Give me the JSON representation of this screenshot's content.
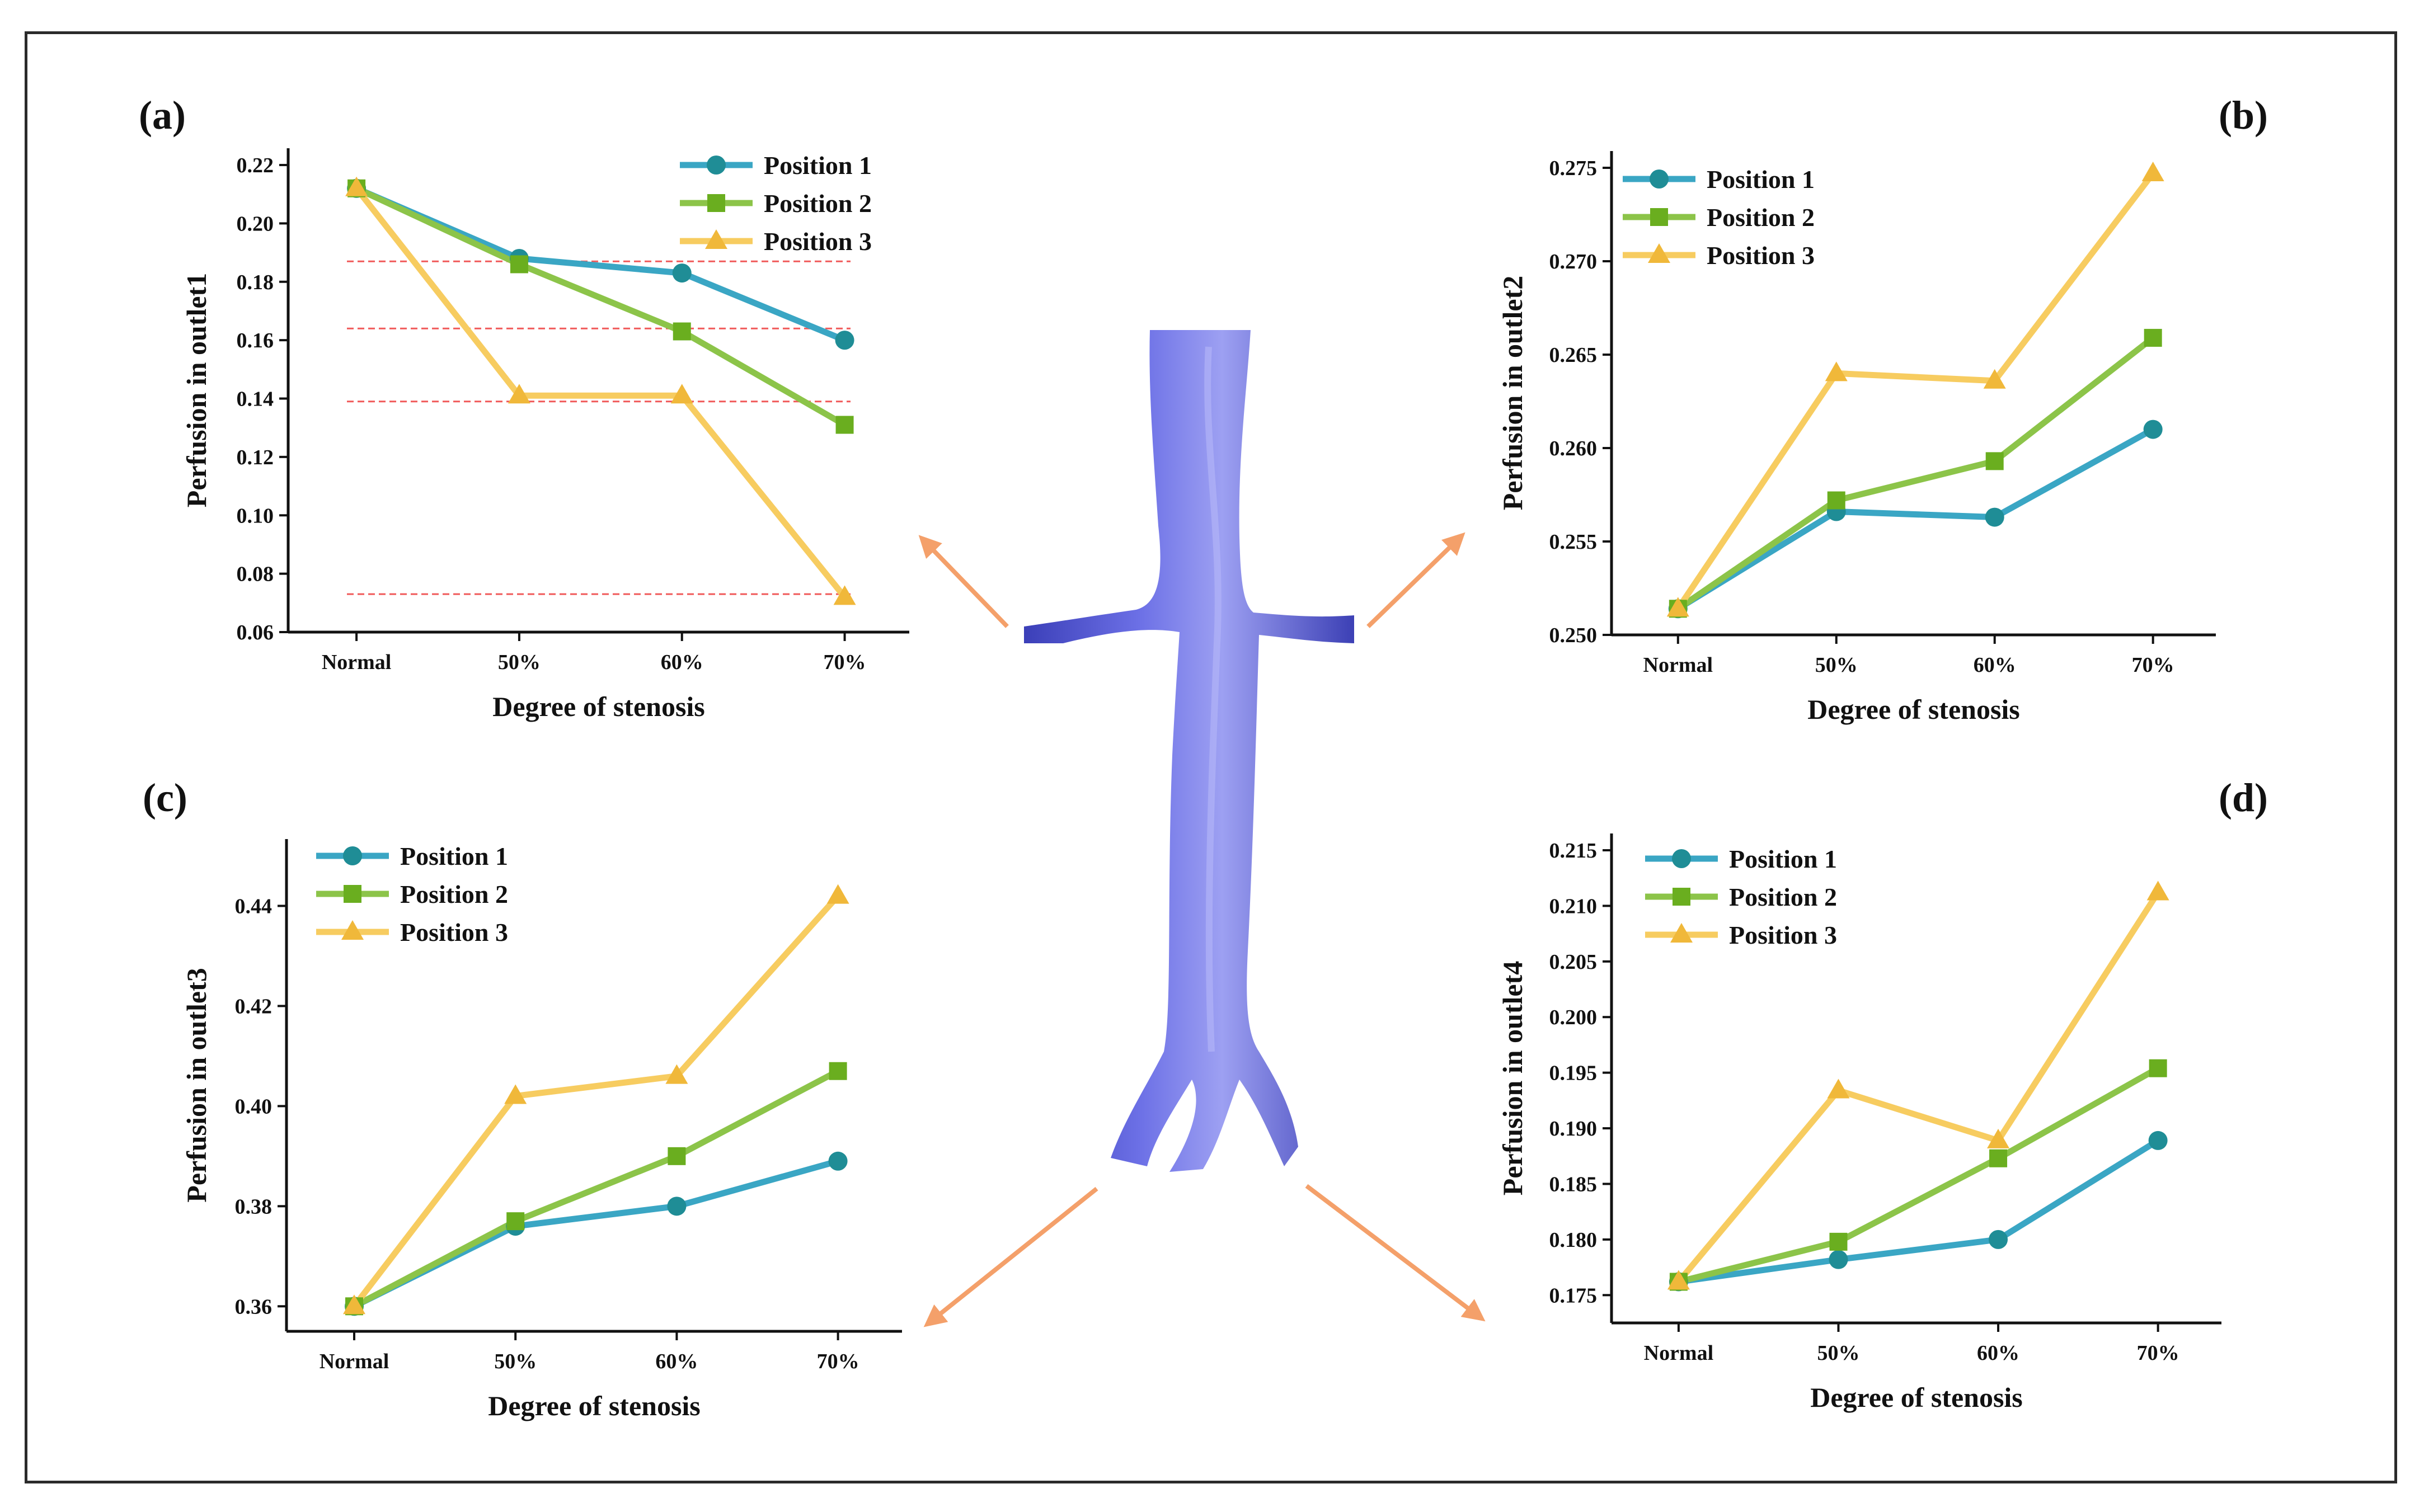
{
  "colors": {
    "position1": "#3aa6c4",
    "position1_marker": "#1f8d96",
    "position2": "#8cc449",
    "position2_marker": "#6aae1f",
    "position3": "#f7cc60",
    "position3_marker": "#f0b83a",
    "arrow": "#f4a06a",
    "ref_line": "#f05a5a",
    "vessel": "#5a5ed6"
  },
  "center_image": {
    "description_icon": "vessel-3d-model-icon"
  },
  "chart_data": [
    {
      "type": "line",
      "panel_label": "(a)",
      "categories": [
        "Normal",
        "50%",
        "60%",
        "70%"
      ],
      "xlabel": "Degree of stenosis",
      "ylabel": "Perfusion in outlet1",
      "ylim": [
        0.06,
        0.22
      ],
      "yticks": [
        "0.06",
        "0.08",
        "0.10",
        "0.12",
        "0.14",
        "0.16",
        "0.18",
        "0.20",
        "0.22"
      ],
      "legend_position": "top-right",
      "reference_lines": [
        0.187,
        0.164,
        0.139,
        0.073
      ],
      "series": [
        {
          "name": "Position 1",
          "marker": "circle",
          "values": [
            0.212,
            0.188,
            0.183,
            0.16
          ]
        },
        {
          "name": "Position 2",
          "marker": "square",
          "values": [
            0.212,
            0.186,
            0.163,
            0.131
          ]
        },
        {
          "name": "Position 3",
          "marker": "triangle",
          "values": [
            0.212,
            0.141,
            0.141,
            0.072
          ]
        }
      ]
    },
    {
      "type": "line",
      "panel_label": "(b)",
      "categories": [
        "Normal",
        "50%",
        "60%",
        "70%"
      ],
      "xlabel": "Degree of stenosis",
      "ylabel": "Perfusion in outlet2",
      "ylim": [
        0.25,
        0.275
      ],
      "yticks": [
        "0.250",
        "0.255",
        "0.260",
        "0.265",
        "0.270",
        "0.275"
      ],
      "legend_position": "top-left",
      "series": [
        {
          "name": "Position 1",
          "marker": "circle",
          "values": [
            0.2514,
            0.2566,
            0.2563,
            0.261
          ]
        },
        {
          "name": "Position 2",
          "marker": "square",
          "values": [
            0.2514,
            0.2572,
            0.2593,
            0.2659
          ]
        },
        {
          "name": "Position 3",
          "marker": "triangle",
          "values": [
            0.2514,
            0.264,
            0.2636,
            0.2747
          ]
        }
      ]
    },
    {
      "type": "line",
      "panel_label": "(c)",
      "categories": [
        "Normal",
        "50%",
        "60%",
        "70%"
      ],
      "xlabel": "Degree of stenosis",
      "ylabel": "Perfusion in outlet3",
      "ylim": [
        0.355,
        0.45
      ],
      "yticks": [
        "0.36",
        "0.38",
        "0.40",
        "0.42",
        "0.44"
      ],
      "legend_position": "top-left",
      "series": [
        {
          "name": "Position 1",
          "marker": "circle",
          "values": [
            0.36,
            0.376,
            0.38,
            0.389
          ]
        },
        {
          "name": "Position 2",
          "marker": "square",
          "values": [
            0.36,
            0.377,
            0.39,
            0.407
          ]
        },
        {
          "name": "Position 3",
          "marker": "triangle",
          "values": [
            0.36,
            0.402,
            0.406,
            0.442
          ]
        }
      ]
    },
    {
      "type": "line",
      "panel_label": "(d)",
      "categories": [
        "Normal",
        "50%",
        "60%",
        "70%"
      ],
      "xlabel": "Degree of stenosis",
      "ylabel": "Perfusion in outlet4",
      "ylim": [
        0.1725,
        0.215
      ],
      "yticks": [
        "0.175",
        "0.180",
        "0.185",
        "0.190",
        "0.195",
        "0.200",
        "0.205",
        "0.210",
        "0.215"
      ],
      "legend_position": "top-left",
      "series": [
        {
          "name": "Position 1",
          "marker": "circle",
          "values": [
            0.1762,
            0.1782,
            0.18,
            0.1889
          ]
        },
        {
          "name": "Position 2",
          "marker": "square",
          "values": [
            0.1762,
            0.1798,
            0.1873,
            0.1954
          ]
        },
        {
          "name": "Position 3",
          "marker": "triangle",
          "values": [
            0.1762,
            0.1934,
            0.1889,
            0.2112
          ]
        }
      ]
    }
  ]
}
